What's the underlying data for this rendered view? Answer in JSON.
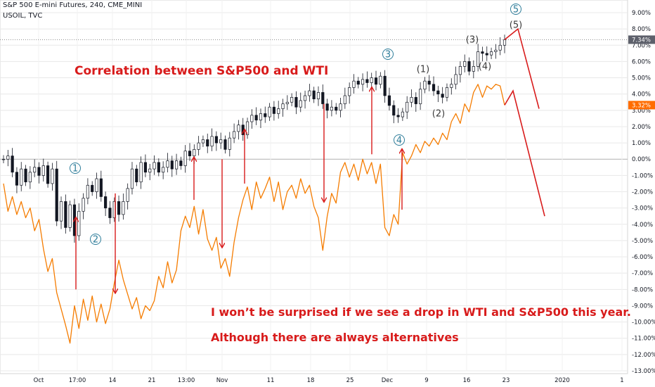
{
  "header": {
    "series_title": "S&P 500 E-mini Futures, 240, CME_MINI",
    "compare_title": "USOIL, TVC"
  },
  "annotations": {
    "title": "Correlation between S&P500 and WTI",
    "note_1": "I won’t be surprised if we see a drop in WTI and S&P500 this year.",
    "note_2": "Although there are always alternatives"
  },
  "colors": {
    "spx": "#131722",
    "wti": "#f57c00",
    "arrows": "#d81b1b",
    "waves_circled": "#2e7d9a",
    "waves_paren": "#3a3a3a",
    "grid": "#e8e8e8",
    "zero_line": "#b0b0b0"
  },
  "chart_data": {
    "type": "line",
    "percent_scale": true,
    "ylim": [
      -13,
      9
    ],
    "y_ticks": [
      "9.00%",
      "8.00%",
      "7.00%",
      "6.00%",
      "5.00%",
      "4.00%",
      "3.00%",
      "2.00%",
      "1.00%",
      "0.00%",
      "-1.00%",
      "-2.00%",
      "-3.00%",
      "-4.00%",
      "-5.00%",
      "-6.00%",
      "-7.00%",
      "-8.00%",
      "-9.00%",
      "-10.00%",
      "-11.00%",
      "-12.00%",
      "-13.00%"
    ],
    "x_ticks": [
      {
        "label": "Oct",
        "i": 0
      },
      {
        "label": "17:00",
        "i": 1
      },
      {
        "label": "14",
        "i": 2
      },
      {
        "label": "21",
        "i": 3
      },
      {
        "label": "13:00",
        "i": 4
      },
      {
        "label": "Nov",
        "i": 5
      },
      {
        "label": "11",
        "i": 6
      },
      {
        "label": "18",
        "i": 7
      },
      {
        "label": "25",
        "i": 8
      },
      {
        "label": "Dec",
        "i": 9
      },
      {
        "label": "9",
        "i": 10
      },
      {
        "label": "16",
        "i": 11
      },
      {
        "label": "23",
        "i": 12
      },
      {
        "label": "2020",
        "i": 13
      },
      {
        "label": "1",
        "i": 14
      }
    ],
    "last_values": {
      "spx": "7.34%",
      "wti": "3.32%"
    },
    "series": [
      {
        "name": "S&P 500 E-mini Futures",
        "style": "candles",
        "values": [
          0.0,
          0.2,
          -0.8,
          -1.6,
          -0.6,
          -1.4,
          -0.8,
          -0.5,
          -1.0,
          -0.4,
          -1.5,
          -0.6,
          -3.8,
          -2.6,
          -4.2,
          -2.8,
          -4.7,
          -3.2,
          -2.4,
          -1.6,
          -2.0,
          -1.2,
          -2.3,
          -3.0,
          -3.6,
          -2.6,
          -3.4,
          -2.6,
          -1.8,
          -0.6,
          -1.4,
          -0.2,
          -0.8,
          -0.6,
          -0.2,
          -0.8,
          -0.5,
          -0.1,
          -0.6,
          -0.1,
          -0.4,
          0.5,
          0.2,
          0.6,
          1.0,
          1.2,
          0.8,
          1.4,
          1.0,
          1.2,
          0.6,
          1.3,
          1.7,
          2.1,
          1.5,
          2.3,
          2.7,
          2.4,
          2.8,
          2.6,
          3.2,
          2.8,
          3.1,
          3.4,
          3.5,
          3.8,
          3.2,
          3.6,
          3.9,
          4.2,
          3.7,
          4.1,
          3.4,
          3.0,
          3.2,
          3.0,
          3.4,
          3.9,
          4.4,
          4.8,
          4.6,
          4.9,
          4.7,
          5.0,
          4.6,
          5.1,
          3.9,
          3.3,
          2.7,
          2.6,
          2.9,
          3.5,
          3.8,
          3.4,
          4.3,
          4.8,
          4.6,
          4.2,
          4.0,
          3.8,
          4.4,
          4.6,
          5.2,
          5.7,
          6.0,
          5.4,
          5.7,
          6.6,
          6.5,
          6.4,
          6.6,
          6.7,
          7.0,
          7.34
        ]
      },
      {
        "name": "USOIL",
        "style": "line",
        "values": [
          -1.5,
          -3.2,
          -2.3,
          -3.4,
          -2.6,
          -3.6,
          -3.0,
          -4.4,
          -3.7,
          -5.5,
          -6.9,
          -6.1,
          -8.2,
          -9.2,
          -10.2,
          -11.3,
          -9.0,
          -10.4,
          -8.6,
          -9.9,
          -8.4,
          -10.0,
          -8.9,
          -10.1,
          -9.2,
          -7.6,
          -6.2,
          -7.4,
          -8.3,
          -9.2,
          -8.5,
          -9.8,
          -9.0,
          -9.3,
          -8.7,
          -7.2,
          -7.9,
          -6.3,
          -7.6,
          -6.8,
          -4.4,
          -3.5,
          -4.2,
          -2.9,
          -4.6,
          -3.1,
          -4.9,
          -5.6,
          -4.8,
          -6.7,
          -6.1,
          -7.2,
          -5.1,
          -3.6,
          -2.5,
          -1.7,
          -3.1,
          -1.4,
          -2.4,
          -1.8,
          -1.1,
          -2.6,
          -1.4,
          -3.1,
          -2.0,
          -1.6,
          -2.4,
          -1.2,
          -2.1,
          -1.6,
          -2.9,
          -3.6,
          -5.6,
          -3.5,
          -2.1,
          -2.7,
          -0.8,
          -0.2,
          -1.1,
          -0.3,
          -1.3,
          0.0,
          -0.9,
          -0.2,
          -1.5,
          -0.3,
          -4.2,
          -4.7,
          -3.4,
          -4.0,
          0.4,
          -0.3,
          0.2,
          0.9,
          0.4,
          1.1,
          0.8,
          1.3,
          0.9,
          1.6,
          1.2,
          2.3,
          2.8,
          2.2,
          3.4,
          2.9,
          4.1,
          4.6,
          3.8,
          4.5,
          4.3,
          4.6,
          4.5,
          3.32
        ]
      }
    ],
    "projections": [
      {
        "name": "spx-projection",
        "points": [
          [
            0,
            7.34
          ],
          [
            1,
            8.0
          ],
          [
            2,
            3.1
          ]
        ]
      },
      {
        "name": "wti-projection",
        "points": [
          [
            0,
            3.32
          ],
          [
            1,
            4.2
          ],
          [
            2,
            -3.5
          ]
        ]
      }
    ],
    "wave_labels": [
      {
        "text": "1",
        "circled": true
      },
      {
        "text": "2",
        "circled": true
      },
      {
        "text": "3",
        "circled": true
      },
      {
        "text": "4",
        "circled": true
      },
      {
        "text": "5",
        "circled": true
      },
      {
        "text": "(1)",
        "circled": false
      },
      {
        "text": "(2)",
        "circled": false
      },
      {
        "text": "(3)",
        "circled": false
      },
      {
        "text": "(4)",
        "circled": false
      },
      {
        "text": "(5)",
        "circled": false
      }
    ],
    "arrows": [
      {
        "name": "arrow-up-1",
        "from": -8.0,
        "to": -3.6
      },
      {
        "name": "arrow-down-1",
        "from": -2.1,
        "to": -8.2
      },
      {
        "name": "arrow-up-2",
        "from": -2.5,
        "to": 0.1
      },
      {
        "name": "arrow-down-2",
        "from": 0.0,
        "to": -5.4
      },
      {
        "name": "arrow-up-3",
        "from": -1.5,
        "to": 1.8
      },
      {
        "name": "arrow-down-3",
        "from": 3.4,
        "to": -2.6
      },
      {
        "name": "arrow-up-4",
        "from": 0.3,
        "to": 4.4
      },
      {
        "name": "arrow-up-5",
        "from": -3.1,
        "to": 0.6
      }
    ]
  }
}
